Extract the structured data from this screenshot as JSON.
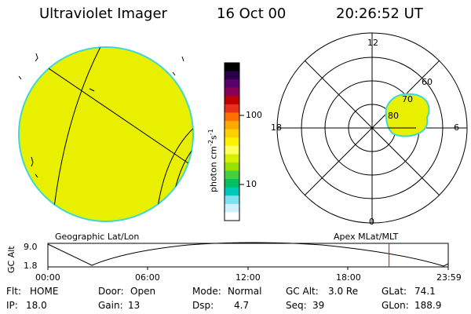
{
  "header": {
    "title": "Ultraviolet Imager",
    "date": "16 Oct 00",
    "time": "20:26:52 UT"
  },
  "colorbar": {
    "unit": "photon cm",
    "unit_exp1": "-2",
    "unit_mid": "s",
    "unit_exp2": "-1",
    "tick_100": "100",
    "tick_10": "10",
    "colors": [
      "#000000",
      "#2a004a",
      "#5a006a",
      "#880058",
      "#c00000",
      "#e83018",
      "#ff7000",
      "#ffa800",
      "#ffd000",
      "#fff200",
      "#ffff60",
      "#d8f000",
      "#98e000",
      "#40d040",
      "#00c060",
      "#00c8b8",
      "#80e0f0",
      "#d0f0ff",
      "#ffffff"
    ]
  },
  "left_panel": {
    "label": "Geographic Lat/Lon",
    "disk_color": "#e8f000",
    "edge_color": "#40d8d0"
  },
  "right_panel": {
    "label": "Apex MLat/MLT",
    "mlt_labels": {
      "top": "12",
      "left": "18",
      "right": "6",
      "bottom": "0"
    },
    "lat_labels": [
      "60",
      "70",
      "80"
    ]
  },
  "gc_plot": {
    "ylabel": "GC Alt",
    "ymax": "9.0",
    "ymin": "1.8",
    "xticks": [
      "00:00",
      "06:00",
      "12:00",
      "18:00",
      "23:59"
    ],
    "current_time_hours": 20.45
  },
  "info": {
    "filter_label": "Flt:",
    "filter_value": "HOME",
    "door_label": "Door:",
    "door_value": "Open",
    "mode_label": "Mode:",
    "mode_value": "Normal",
    "gcalt_label": "GC Alt:",
    "gcalt_value": "3.0 Re",
    "glat_label": "GLat:",
    "glat_value": "74.1",
    "ip_label": "IP:",
    "ip_value": "18.0",
    "gain_label": "Gain:",
    "gain_value": "13",
    "dsp_label": "Dsp:",
    "dsp_value": "4.7",
    "seq_label": "Seq:",
    "seq_value": "39",
    "glon_label": "GLon:",
    "glon_value": "188.9"
  }
}
